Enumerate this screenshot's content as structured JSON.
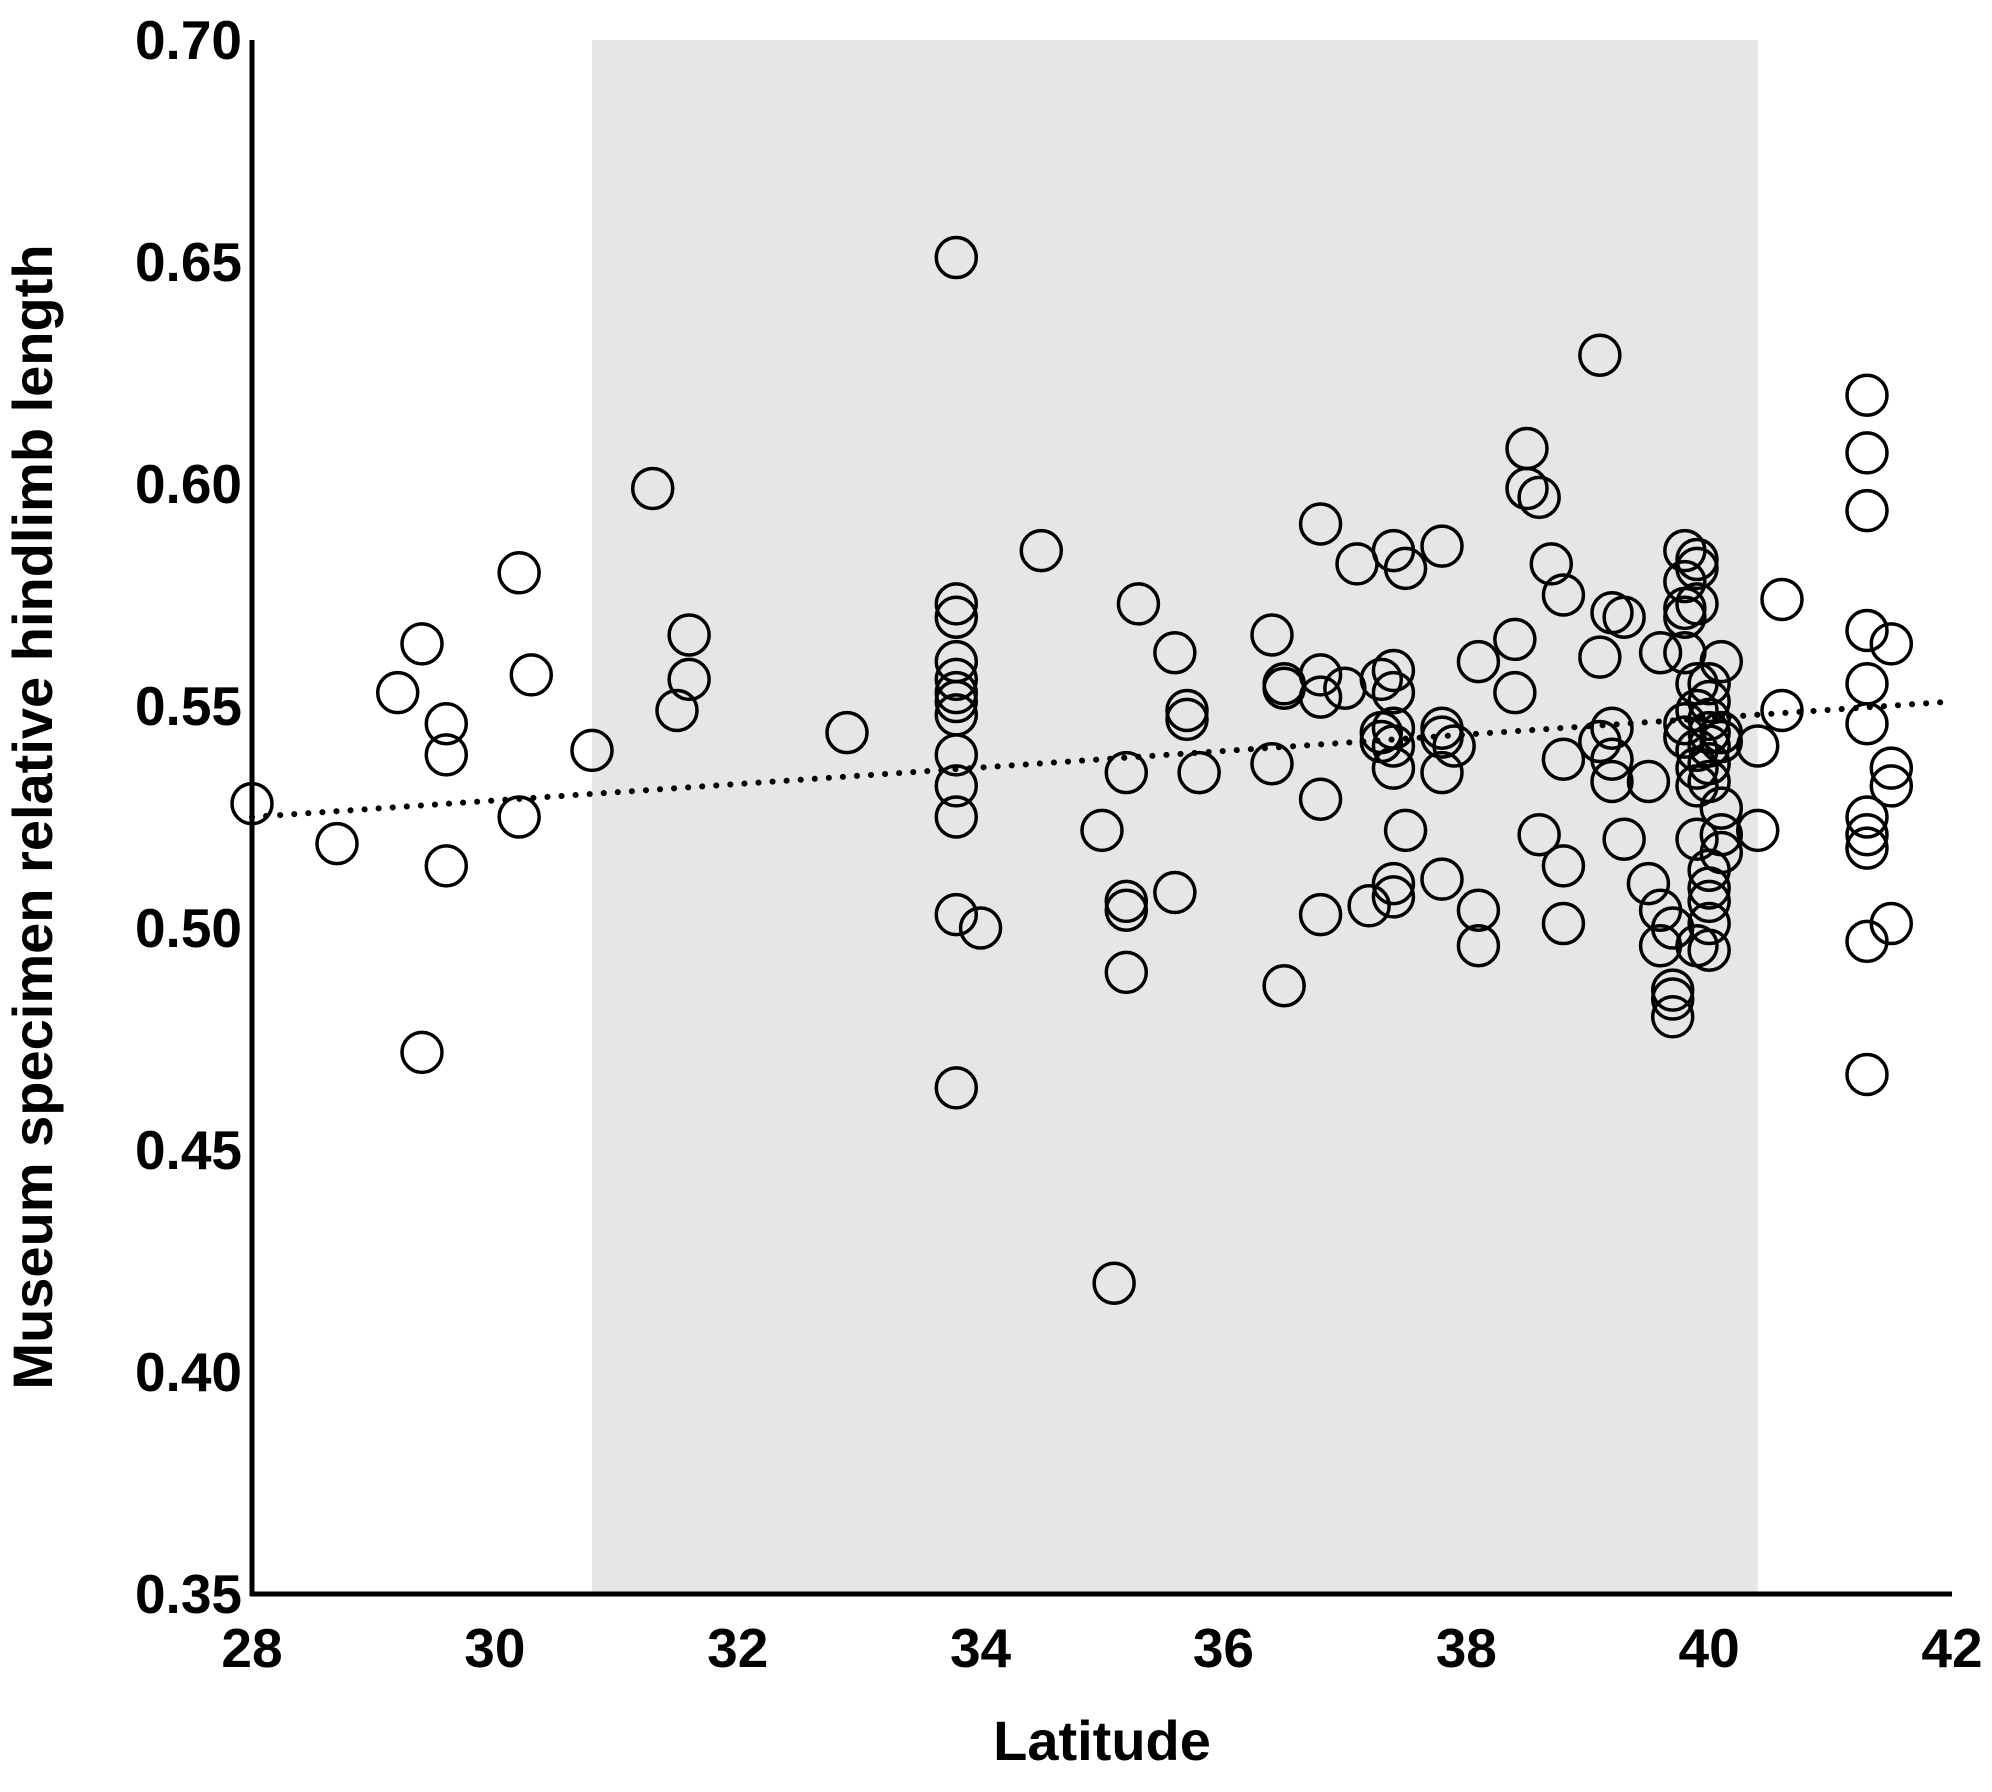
{
  "chart_data": {
    "type": "scatter",
    "xlabel": "Latitude",
    "ylabel": "Museum specimen relative hindlimb length",
    "xlim": [
      28,
      42
    ],
    "ylim": [
      0.35,
      0.7
    ],
    "xticks": [
      "28",
      "30",
      "32",
      "34",
      "36",
      "38",
      "40",
      "42"
    ],
    "yticks": [
      "0.35",
      "0.40",
      "0.45",
      "0.50",
      "0.55",
      "0.60",
      "0.65",
      "0.70"
    ],
    "grid": false,
    "shaded_band": {
      "x_start": 30.8,
      "x_end": 40.4,
      "color": "#e6e6e6"
    },
    "trendline": {
      "style": "dotted",
      "x": [
        28.0,
        42.0
      ],
      "y": [
        0.525,
        0.551
      ]
    },
    "points": [
      [
        28.0,
        0.528
      ],
      [
        28.7,
        0.519
      ],
      [
        29.2,
        0.553
      ],
      [
        29.4,
        0.564
      ],
      [
        29.6,
        0.546
      ],
      [
        29.6,
        0.539
      ],
      [
        29.6,
        0.514
      ],
      [
        29.4,
        0.472
      ],
      [
        30.2,
        0.58
      ],
      [
        30.3,
        0.557
      ],
      [
        30.2,
        0.525
      ],
      [
        30.8,
        0.54
      ],
      [
        31.3,
        0.599
      ],
      [
        31.6,
        0.566
      ],
      [
        31.6,
        0.556
      ],
      [
        31.5,
        0.549
      ],
      [
        32.9,
        0.544
      ],
      [
        33.8,
        0.651
      ],
      [
        33.8,
        0.573
      ],
      [
        33.8,
        0.57
      ],
      [
        33.8,
        0.56
      ],
      [
        33.8,
        0.556
      ],
      [
        33.8,
        0.553
      ],
      [
        33.8,
        0.551
      ],
      [
        33.8,
        0.548
      ],
      [
        33.8,
        0.539
      ],
      [
        33.8,
        0.532
      ],
      [
        33.8,
        0.525
      ],
      [
        33.8,
        0.503
      ],
      [
        34.0,
        0.5
      ],
      [
        33.8,
        0.464
      ],
      [
        34.5,
        0.585
      ],
      [
        35.0,
        0.522
      ],
      [
        35.2,
        0.535
      ],
      [
        35.2,
        0.506
      ],
      [
        35.2,
        0.504
      ],
      [
        35.2,
        0.49
      ],
      [
        35.1,
        0.42
      ],
      [
        35.3,
        0.573
      ],
      [
        35.6,
        0.562
      ],
      [
        35.7,
        0.549
      ],
      [
        35.7,
        0.547
      ],
      [
        35.8,
        0.535
      ],
      [
        35.6,
        0.508
      ],
      [
        36.4,
        0.566
      ],
      [
        36.5,
        0.555
      ],
      [
        36.5,
        0.554
      ],
      [
        36.4,
        0.537
      ],
      [
        36.5,
        0.487
      ],
      [
        36.8,
        0.591
      ],
      [
        36.8,
        0.557
      ],
      [
        36.8,
        0.552
      ],
      [
        37.0,
        0.554
      ],
      [
        36.8,
        0.529
      ],
      [
        36.8,
        0.503
      ],
      [
        37.1,
        0.582
      ],
      [
        37.3,
        0.556
      ],
      [
        37.3,
        0.544
      ],
      [
        37.3,
        0.542
      ],
      [
        37.4,
        0.585
      ],
      [
        37.4,
        0.558
      ],
      [
        37.4,
        0.553
      ],
      [
        37.4,
        0.545
      ],
      [
        37.4,
        0.541
      ],
      [
        37.4,
        0.536
      ],
      [
        37.4,
        0.51
      ],
      [
        37.4,
        0.507
      ],
      [
        37.2,
        0.505
      ],
      [
        37.5,
        0.581
      ],
      [
        37.5,
        0.522
      ],
      [
        37.8,
        0.586
      ],
      [
        37.8,
        0.545
      ],
      [
        37.8,
        0.543
      ],
      [
        37.9,
        0.541
      ],
      [
        37.8,
        0.535
      ],
      [
        37.8,
        0.511
      ],
      [
        38.1,
        0.56
      ],
      [
        38.1,
        0.504
      ],
      [
        38.1,
        0.496
      ],
      [
        38.4,
        0.565
      ],
      [
        38.4,
        0.553
      ],
      [
        38.5,
        0.608
      ],
      [
        38.5,
        0.599
      ],
      [
        38.6,
        0.597
      ],
      [
        38.7,
        0.582
      ],
      [
        38.8,
        0.575
      ],
      [
        38.8,
        0.538
      ],
      [
        38.6,
        0.521
      ],
      [
        38.8,
        0.514
      ],
      [
        38.8,
        0.501
      ],
      [
        39.1,
        0.629
      ],
      [
        39.2,
        0.571
      ],
      [
        39.3,
        0.57
      ],
      [
        39.1,
        0.561
      ],
      [
        39.2,
        0.545
      ],
      [
        39.1,
        0.542
      ],
      [
        39.2,
        0.538
      ],
      [
        39.2,
        0.533
      ],
      [
        39.3,
        0.52
      ],
      [
        39.5,
        0.533
      ],
      [
        39.6,
        0.562
      ],
      [
        39.5,
        0.51
      ],
      [
        39.6,
        0.504
      ],
      [
        39.6,
        0.496
      ],
      [
        39.7,
        0.5
      ],
      [
        39.7,
        0.486
      ],
      [
        39.7,
        0.484
      ],
      [
        39.7,
        0.48
      ],
      [
        39.8,
        0.585
      ],
      [
        39.8,
        0.578
      ],
      [
        39.8,
        0.572
      ],
      [
        39.8,
        0.57
      ],
      [
        39.9,
        0.583
      ],
      [
        39.9,
        0.581
      ],
      [
        39.9,
        0.573
      ],
      [
        39.8,
        0.562
      ],
      [
        39.9,
        0.555
      ],
      [
        39.9,
        0.549
      ],
      [
        39.8,
        0.546
      ],
      [
        39.8,
        0.543
      ],
      [
        39.9,
        0.54
      ],
      [
        39.9,
        0.536
      ],
      [
        39.9,
        0.532
      ],
      [
        40.0,
        0.555
      ],
      [
        40.0,
        0.551
      ],
      [
        40.0,
        0.547
      ],
      [
        40.0,
        0.544
      ],
      [
        40.0,
        0.541
      ],
      [
        40.0,
        0.537
      ],
      [
        40.0,
        0.533
      ],
      [
        39.9,
        0.52
      ],
      [
        40.0,
        0.513
      ],
      [
        40.0,
        0.509
      ],
      [
        40.0,
        0.506
      ],
      [
        40.0,
        0.501
      ],
      [
        39.9,
        0.496
      ],
      [
        40.0,
        0.495
      ],
      [
        40.1,
        0.56
      ],
      [
        40.1,
        0.544
      ],
      [
        40.1,
        0.542
      ],
      [
        40.1,
        0.527
      ],
      [
        40.1,
        0.521
      ],
      [
        40.1,
        0.517
      ],
      [
        40.4,
        0.541
      ],
      [
        40.4,
        0.522
      ],
      [
        40.6,
        0.574
      ],
      [
        40.6,
        0.549
      ],
      [
        41.3,
        0.62
      ],
      [
        41.3,
        0.607
      ],
      [
        41.3,
        0.594
      ],
      [
        41.3,
        0.567
      ],
      [
        41.3,
        0.555
      ],
      [
        41.3,
        0.546
      ],
      [
        41.3,
        0.525
      ],
      [
        41.3,
        0.521
      ],
      [
        41.3,
        0.518
      ],
      [
        41.3,
        0.497
      ],
      [
        41.3,
        0.467
      ],
      [
        41.5,
        0.564
      ],
      [
        41.5,
        0.536
      ],
      [
        41.5,
        0.532
      ],
      [
        41.5,
        0.501
      ]
    ]
  }
}
